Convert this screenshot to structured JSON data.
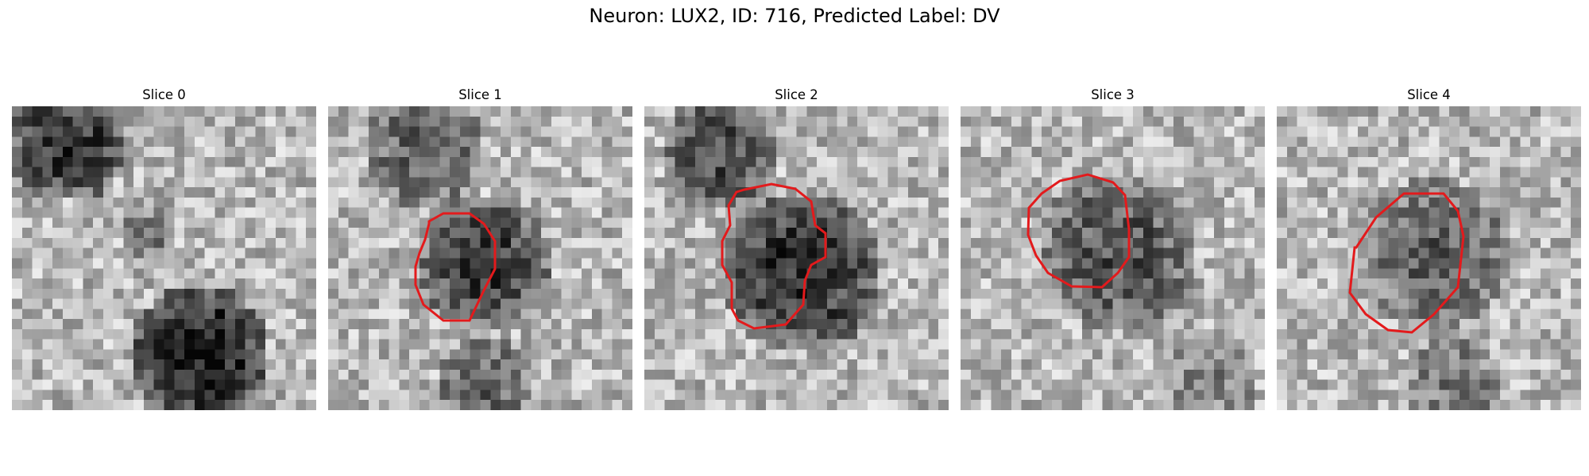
{
  "figure": {
    "title": "Neuron: LUX2, ID: 716, Predicted Label: DV",
    "contour_color": "#e31a1c"
  },
  "panels": [
    {
      "title": "Slice 0"
    },
    {
      "title": "Slice 1"
    },
    {
      "title": "Slice 2"
    },
    {
      "title": "Slice 3"
    },
    {
      "title": "Slice 4"
    }
  ]
}
